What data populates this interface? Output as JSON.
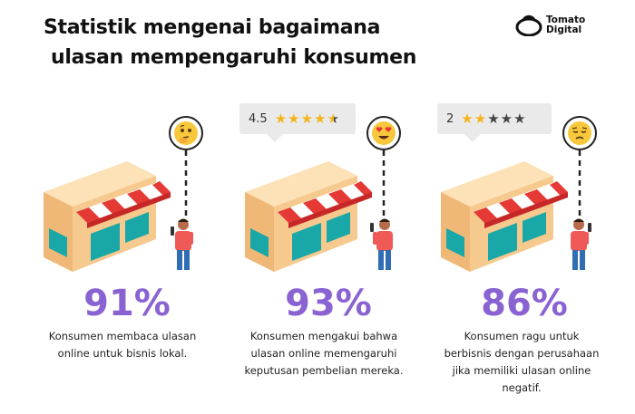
{
  "header": {
    "title_line1": "Statistik mengenai bagaimana",
    "title_line2": "ulasan mempengaruhi konsumen",
    "brand_line1": "Tomato",
    "brand_line2": "Digital"
  },
  "stats": [
    {
      "percent": "91%",
      "description": "Konsumen membaca ulasan online untuk bisnis lokal.",
      "emoji": "thinking-face",
      "rating": null
    },
    {
      "percent": "93%",
      "description": "Konsumen mengakui bahwa ulasan online memengaruhi keputusan pembelian mereka.",
      "emoji": "heart-eyes-face",
      "rating": {
        "value": "4.5",
        "stars_filled": 4.5,
        "stars_total": 5
      }
    },
    {
      "percent": "86%",
      "description": "Konsumen ragu untuk berbisnis dengan perusahaan jika memiliki ulasan online negatif.",
      "emoji": "disappointed-face",
      "rating": {
        "value": "2",
        "stars_filled": 2,
        "stars_total": 5
      }
    }
  ],
  "colors": {
    "percent": "#8a63d2",
    "awning_red": "#e53935",
    "store_wall": "#f6c98e",
    "window_teal": "#19a7a7",
    "person_shirt": "#f05a56",
    "person_pants": "#2f6db5",
    "star": "#f4b41a"
  }
}
